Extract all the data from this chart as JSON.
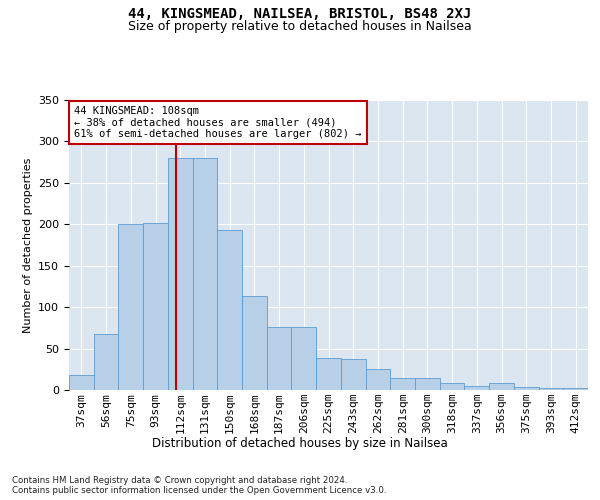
{
  "title1": "44, KINGSMEAD, NAILSEA, BRISTOL, BS48 2XJ",
  "title2": "Size of property relative to detached houses in Nailsea",
  "xlabel": "Distribution of detached houses by size in Nailsea",
  "ylabel": "Number of detached properties",
  "categories": [
    "37sqm",
    "56sqm",
    "75sqm",
    "93sqm",
    "112sqm",
    "131sqm",
    "150sqm",
    "168sqm",
    "187sqm",
    "206sqm",
    "225sqm",
    "243sqm",
    "262sqm",
    "281sqm",
    "300sqm",
    "318sqm",
    "337sqm",
    "356sqm",
    "375sqm",
    "393sqm",
    "412sqm"
  ],
  "bar_values": [
    18,
    67,
    200,
    201,
    280,
    280,
    193,
    113,
    76,
    76,
    39,
    38,
    25,
    14,
    14,
    9,
    5,
    8,
    4,
    2,
    2
  ],
  "bar_color": "#b8cfe8",
  "bar_edge_color": "#5b9bd5",
  "background_color": "#dce6f1",
  "vline_color": "#c00000",
  "vline_pos": 3.82,
  "annotation_text": "44 KINGSMEAD: 108sqm\n← 38% of detached houses are smaller (494)\n61% of semi-detached houses are larger (802) →",
  "annotation_box_facecolor": "#ffffff",
  "annotation_box_edgecolor": "#c00000",
  "footer": "Contains HM Land Registry data © Crown copyright and database right 2024.\nContains public sector information licensed under the Open Government Licence v3.0.",
  "ylim": [
    0,
    350
  ],
  "yticks": [
    0,
    50,
    100,
    150,
    200,
    250,
    300,
    350
  ],
  "title1_fontsize": 10,
  "title2_fontsize": 9,
  "xlabel_fontsize": 8.5,
  "ylabel_fontsize": 8,
  "tick_fontsize": 8,
  "annot_fontsize": 7.5
}
